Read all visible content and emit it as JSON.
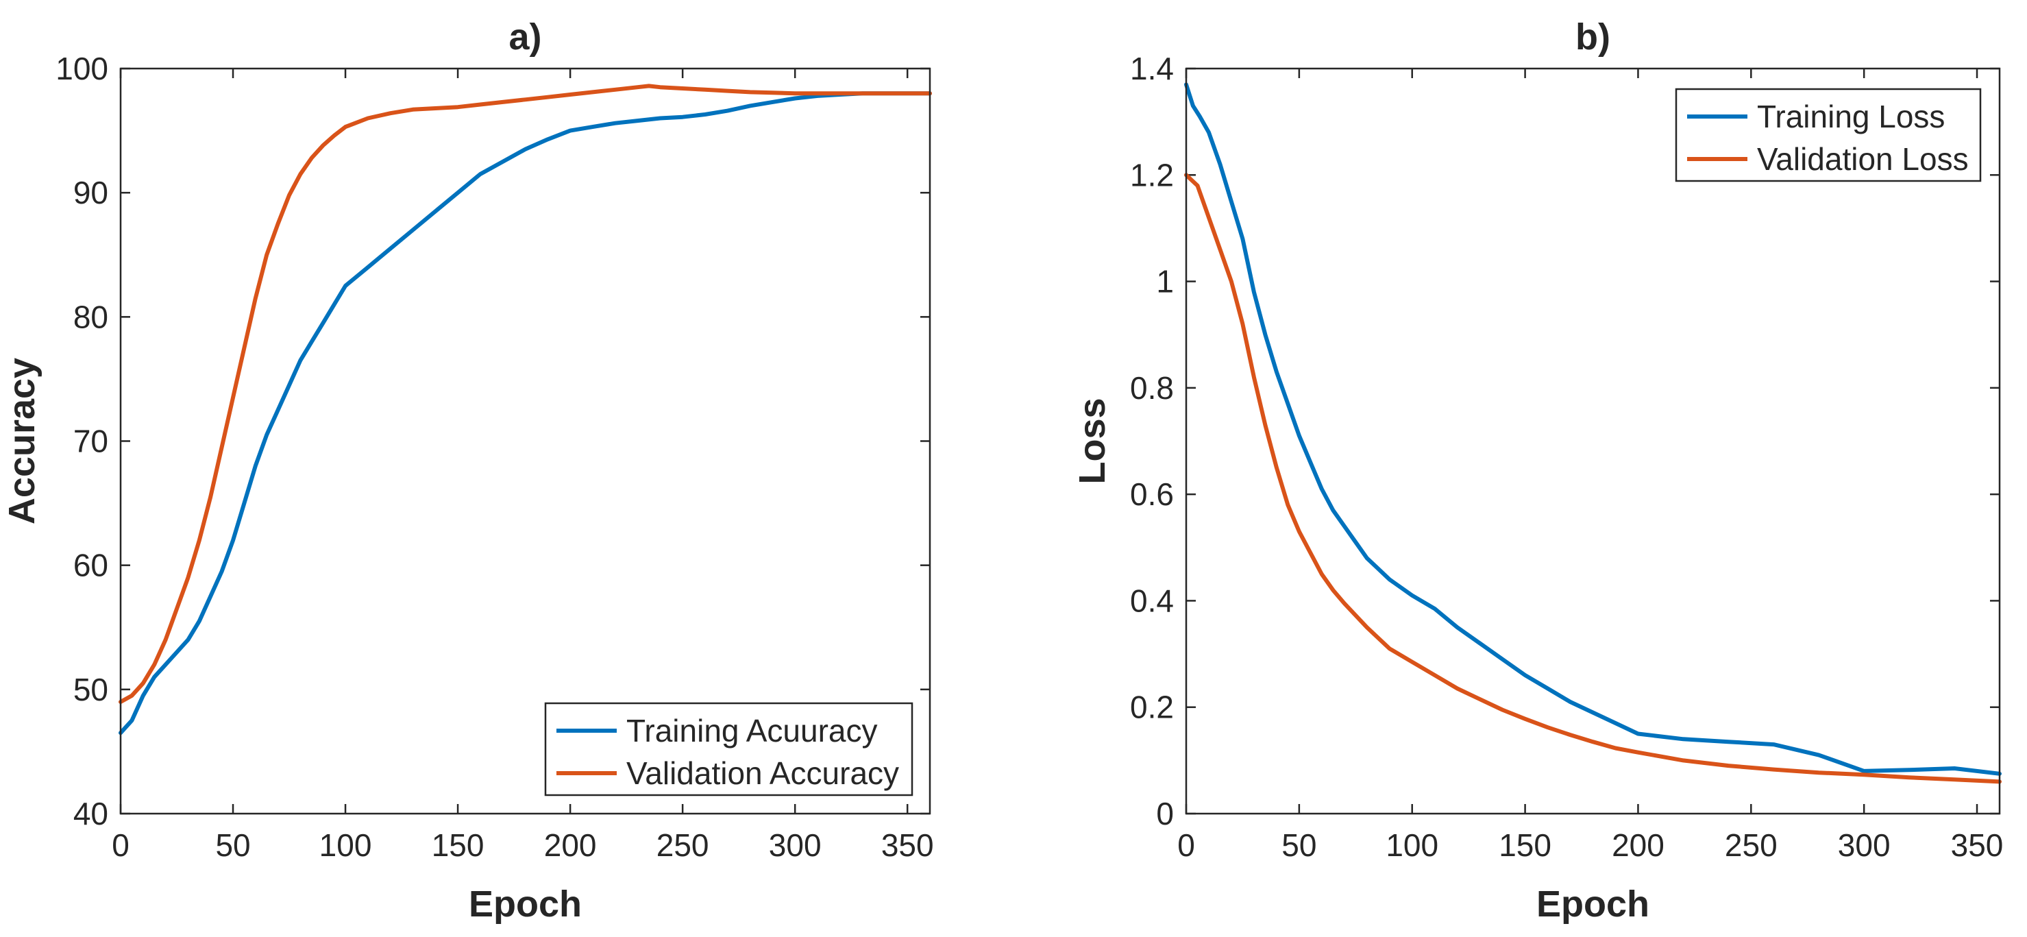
{
  "chart_data": [
    {
      "type": "line",
      "title": "a)",
      "xlabel": "Epoch",
      "ylabel": "Accuracy",
      "xlim": [
        0,
        360
      ],
      "ylim": [
        40,
        100
      ],
      "xticks": [
        0,
        50,
        100,
        150,
        200,
        250,
        300,
        350
      ],
      "yticks": [
        40,
        50,
        60,
        70,
        80,
        90,
        100
      ],
      "legend_position": "bottom-right",
      "series": [
        {
          "name": "Training Acuuracy",
          "color": "#0072BD",
          "x": [
            0,
            5,
            10,
            15,
            20,
            25,
            30,
            35,
            40,
            45,
            50,
            55,
            60,
            65,
            70,
            75,
            80,
            85,
            90,
            95,
            100,
            110,
            120,
            130,
            140,
            150,
            160,
            170,
            180,
            190,
            200,
            210,
            220,
            230,
            240,
            250,
            260,
            270,
            280,
            290,
            300,
            310,
            320,
            330,
            340,
            350,
            360
          ],
          "y": [
            46.5,
            47.5,
            49.5,
            51,
            52,
            53,
            54,
            55.5,
            57.5,
            59.5,
            62,
            65,
            68,
            70.5,
            72.5,
            74.5,
            76.5,
            78,
            79.5,
            81,
            82.5,
            84,
            85.5,
            87,
            88.5,
            90,
            91.5,
            92.5,
            93.5,
            94.3,
            95,
            95.3,
            95.6,
            95.8,
            96,
            96.1,
            96.3,
            96.6,
            97,
            97.3,
            97.6,
            97.8,
            97.9,
            98,
            98,
            98,
            98
          ]
        },
        {
          "name": "Validation Accuracy",
          "color": "#D95319",
          "x": [
            0,
            5,
            10,
            15,
            20,
            25,
            30,
            35,
            40,
            45,
            50,
            55,
            60,
            65,
            70,
            75,
            80,
            85,
            90,
            95,
            100,
            110,
            120,
            130,
            140,
            150,
            160,
            170,
            180,
            190,
            200,
            210,
            220,
            230,
            235,
            240,
            250,
            260,
            270,
            280,
            290,
            300,
            310,
            320,
            330,
            340,
            350,
            360
          ],
          "y": [
            49,
            49.5,
            50.5,
            52,
            54,
            56.5,
            59,
            62,
            65.5,
            69.5,
            73.5,
            77.5,
            81.5,
            85,
            87.5,
            89.8,
            91.5,
            92.8,
            93.8,
            94.6,
            95.3,
            96,
            96.4,
            96.7,
            96.8,
            96.9,
            97.1,
            97.3,
            97.5,
            97.7,
            97.9,
            98.1,
            98.3,
            98.5,
            98.6,
            98.5,
            98.4,
            98.3,
            98.2,
            98.1,
            98.05,
            98,
            98,
            98,
            98,
            98,
            98,
            98
          ]
        }
      ]
    },
    {
      "type": "line",
      "title": "b)",
      "xlabel": "Epoch",
      "ylabel": "Loss",
      "xlim": [
        0,
        360
      ],
      "ylim": [
        0,
        1.4
      ],
      "xticks": [
        0,
        50,
        100,
        150,
        200,
        250,
        300,
        350
      ],
      "yticks": [
        0,
        0.2,
        0.4,
        0.6,
        0.8,
        1,
        1.2,
        1.4
      ],
      "ytick_labels": [
        "0",
        "0.2",
        "0.4",
        "0.6",
        "0.8",
        "1",
        "1.2",
        "1.4"
      ],
      "legend_position": "top-right",
      "series": [
        {
          "name": "Training Loss",
          "color": "#0072BD",
          "x": [
            0,
            3,
            6,
            10,
            15,
            20,
            25,
            30,
            35,
            40,
            45,
            50,
            55,
            60,
            65,
            70,
            75,
            80,
            85,
            90,
            100,
            110,
            120,
            130,
            140,
            150,
            160,
            170,
            180,
            190,
            200,
            220,
            240,
            260,
            280,
            300,
            320,
            340,
            360
          ],
          "y": [
            1.37,
            1.33,
            1.31,
            1.28,
            1.22,
            1.15,
            1.08,
            0.98,
            0.9,
            0.83,
            0.77,
            0.71,
            0.66,
            0.61,
            0.57,
            0.54,
            0.51,
            0.48,
            0.46,
            0.44,
            0.41,
            0.385,
            0.35,
            0.32,
            0.29,
            0.26,
            0.235,
            0.21,
            0.19,
            0.17,
            0.15,
            0.14,
            0.135,
            0.13,
            0.11,
            0.08,
            0.082,
            0.085,
            0.075
          ]
        },
        {
          "name": "Validation Loss",
          "color": "#D95319",
          "x": [
            0,
            5,
            10,
            15,
            20,
            25,
            30,
            35,
            40,
            45,
            50,
            55,
            60,
            65,
            70,
            80,
            90,
            100,
            110,
            120,
            130,
            140,
            150,
            160,
            170,
            180,
            190,
            200,
            220,
            240,
            260,
            280,
            300,
            320,
            340,
            360
          ],
          "y": [
            1.2,
            1.18,
            1.12,
            1.06,
            1.0,
            0.92,
            0.82,
            0.73,
            0.65,
            0.58,
            0.53,
            0.49,
            0.45,
            0.42,
            0.395,
            0.35,
            0.31,
            0.285,
            0.26,
            0.235,
            0.215,
            0.195,
            0.178,
            0.162,
            0.148,
            0.135,
            0.123,
            0.115,
            0.1,
            0.09,
            0.083,
            0.077,
            0.073,
            0.068,
            0.064,
            0.06
          ]
        }
      ]
    }
  ]
}
